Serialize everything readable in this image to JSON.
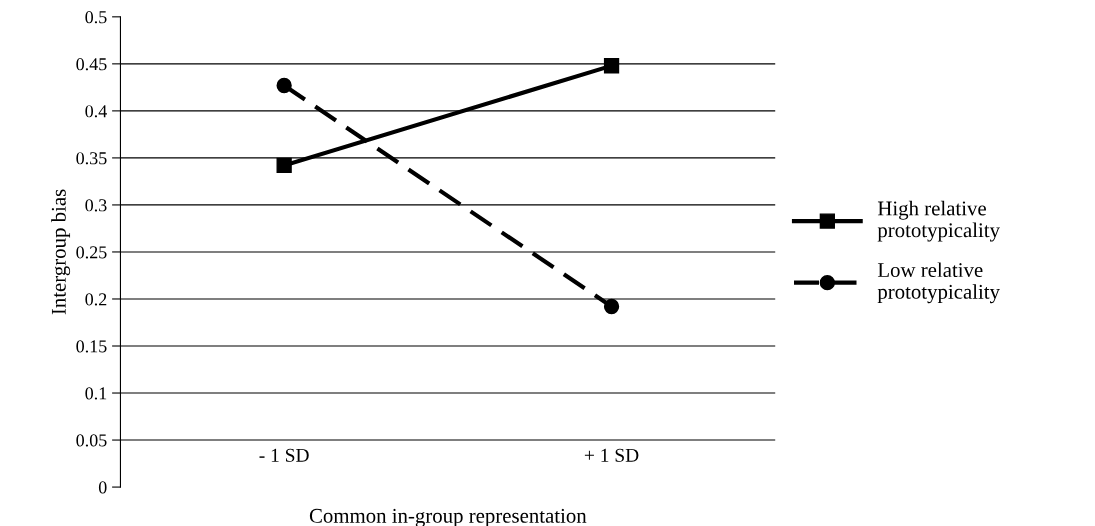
{
  "chart_data": {
    "type": "line",
    "xlabel": "Common in-group representation",
    "ylabel": "Intergroup bias",
    "categories": [
      "- 1 SD",
      "+ 1 SD"
    ],
    "series": [
      {
        "name": "High relative prototypicality",
        "color": "#000000",
        "values": [
          0.342,
          0.448
        ],
        "marker": "square",
        "line_style": "solid"
      },
      {
        "name": "Low relative prototypicality",
        "color": "#000000",
        "values": [
          0.427,
          0.192
        ],
        "marker": "circle",
        "line_style": "dashed"
      }
    ],
    "ylim": [
      0,
      0.5
    ],
    "yticks": [
      0,
      0.05,
      0.1,
      0.15,
      0.2,
      0.25,
      0.3,
      0.35,
      0.4,
      0.45,
      0.5
    ],
    "grid": "y",
    "legend": "right"
  }
}
